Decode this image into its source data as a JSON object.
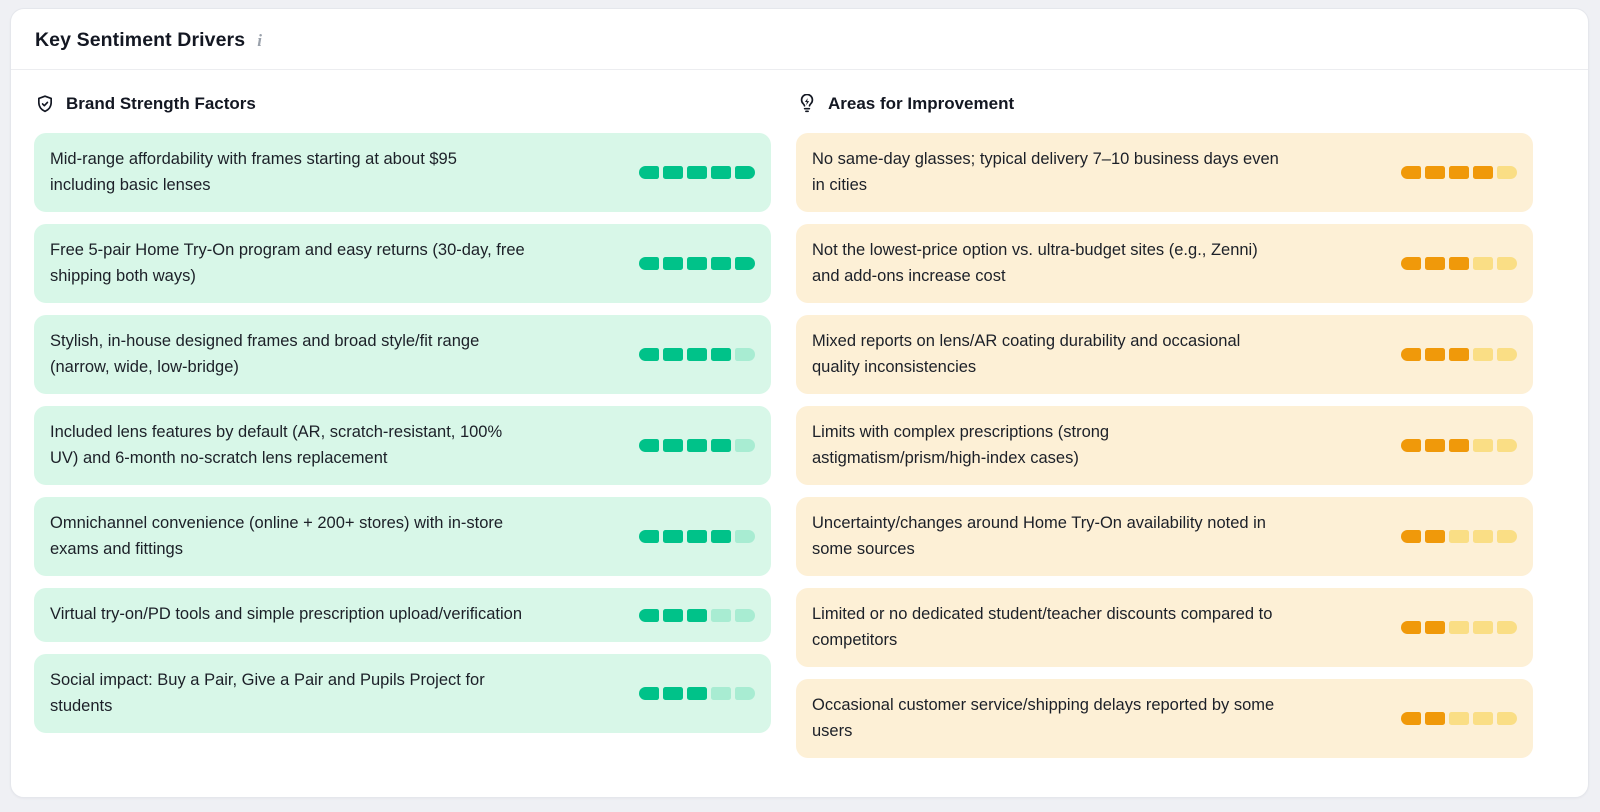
{
  "page": {
    "background": "#eff0f4"
  },
  "panel": {
    "title": "Key Sentiment Drivers",
    "info_icon": "i"
  },
  "columns": [
    {
      "id": "strengths",
      "heading": "Brand Strength Factors",
      "icon": "shield-check-icon",
      "card_name": "strength-card",
      "theme": {
        "card_bg": "#d8f7e8",
        "bar_filled": "#00c289",
        "bar_empty": "#a8ecd2"
      },
      "items": [
        {
          "text": "Mid-range affordability with frames starting at about $95\nincluding basic lenses",
          "score": 5,
          "max": 5
        },
        {
          "text": "Free 5-pair Home Try-On program and easy returns (30-day, free\nshipping both ways)",
          "score": 5,
          "max": 5
        },
        {
          "text": "Stylish, in-house designed frames and broad style/fit range\n(narrow, wide, low-bridge)",
          "score": 4,
          "max": 5
        },
        {
          "text": "Included lens features by default (AR, scratch-resistant, 100%\nUV) and 6-month no-scratch lens replacement",
          "score": 4,
          "max": 5
        },
        {
          "text": "Omnichannel convenience (online + 200+ stores) with in-store\nexams and fittings",
          "score": 4,
          "max": 5
        },
        {
          "text": "Virtual try-on/PD tools and simple prescription upload/verification",
          "score": 3,
          "max": 5
        },
        {
          "text": "Social impact: Buy a Pair, Give a Pair and Pupils Project for\nstudents",
          "score": 3,
          "max": 5
        }
      ]
    },
    {
      "id": "improvements",
      "heading": "Areas for Improvement",
      "icon": "lightbulb-bolt-icon",
      "card_name": "improvement-card",
      "theme": {
        "card_bg": "#fdf0d6",
        "bar_filled": "#f0990a",
        "bar_empty": "#fade85"
      },
      "items": [
        {
          "text": "No same-day glasses; typical delivery 7–10 business days even\nin cities",
          "score": 4,
          "max": 5
        },
        {
          "text": "Not the lowest-price option vs. ultra-budget sites (e.g., Zenni)\nand add-ons increase cost",
          "score": 3,
          "max": 5
        },
        {
          "text": "Mixed reports on lens/AR coating durability and occasional\nquality inconsistencies",
          "score": 3,
          "max": 5
        },
        {
          "text": "Limits with complex prescriptions (strong\nastigmatism/prism/high-index cases)",
          "score": 3,
          "max": 5
        },
        {
          "text": "Uncertainty/changes around Home Try-On availability noted in\nsome sources",
          "score": 2,
          "max": 5
        },
        {
          "text": "Limited or no dedicated student/teacher discounts compared to\ncompetitors",
          "score": 2,
          "max": 5
        },
        {
          "text": "Occasional customer service/shipping delays reported by some\nusers",
          "score": 2,
          "max": 5
        }
      ]
    }
  ]
}
